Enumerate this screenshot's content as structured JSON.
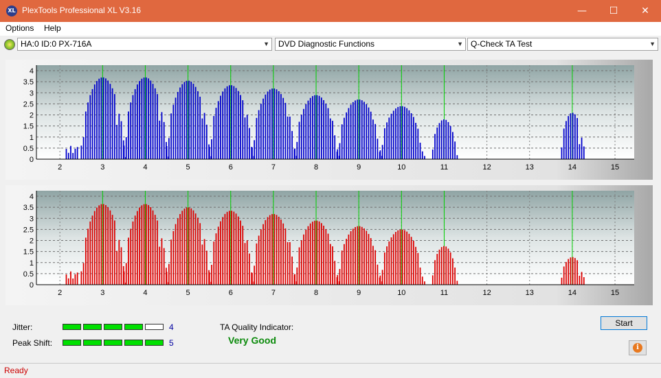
{
  "window": {
    "title": "PlexTools Professional XL V3.16",
    "icon_text": "XL",
    "minimize": "—",
    "maximize": "☐",
    "close": "✕"
  },
  "menu": {
    "options": "Options",
    "help": "Help"
  },
  "toolbar": {
    "drive": "HA:0 ID:0  PX-716A",
    "function": "DVD Diagnostic Functions",
    "test": "Q-Check TA Test"
  },
  "charts": {
    "x_ticks": [
      "2",
      "3",
      "4",
      "5",
      "6",
      "7",
      "8",
      "9",
      "10",
      "11",
      "12",
      "13",
      "14",
      "15"
    ],
    "y_ticks": [
      "0",
      "0.5",
      "1",
      "1.5",
      "2",
      "2.5",
      "3",
      "3.5",
      "4"
    ],
    "green_lines": [
      3,
      4,
      5,
      6,
      7,
      8,
      9,
      10,
      11,
      14
    ],
    "top": {
      "color": "#0000cc",
      "peaks": [
        3.7,
        3.7,
        3.55,
        3.35,
        3.2,
        2.9,
        2.7,
        2.4,
        1.8,
        2.1
      ]
    },
    "bottom": {
      "color": "#dd0000",
      "peaks": [
        3.65,
        3.65,
        3.5,
        3.35,
        3.2,
        2.9,
        2.65,
        2.5,
        1.75,
        1.25
      ]
    }
  },
  "metrics": {
    "jitter_label": "Jitter:",
    "jitter_value": "4",
    "jitter_level": 4,
    "peak_label": "Peak Shift:",
    "peak_value": "5",
    "peak_level": 5,
    "ta_label": "TA Quality Indicator:",
    "ta_value": "Very Good"
  },
  "buttons": {
    "start": "Start",
    "info": "i"
  },
  "status": {
    "text": "Ready"
  }
}
